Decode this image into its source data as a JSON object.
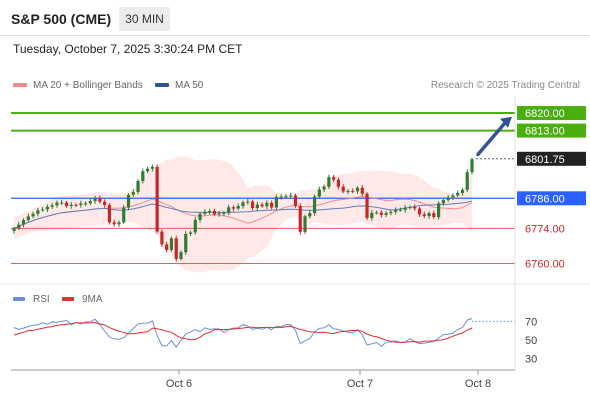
{
  "header": {
    "title": "S&P 500 (CME)",
    "interval": "30 MIN"
  },
  "timestamp": "Tuesday, October 7, 2025 3:30:24 PM CET",
  "legend": [
    {
      "label": "MA 20 + Bollinger Bands",
      "color": "#f28b8b"
    },
    {
      "label": "MA 50",
      "color": "#2f5597"
    }
  ],
  "credit": "Research © 2025 Trading Central",
  "colors": {
    "up": "#2e7d32",
    "down": "#c62828",
    "resistance": "#4caf10",
    "pivot": "#2962ff",
    "support": "#e06060",
    "band": "#fde0e0",
    "ma20": "#f28b8b",
    "ma50": "#5b7fc0",
    "rsi": "#6a8fd8",
    "rsi_ma": "#e03030",
    "arrow": "#2f5597"
  },
  "chart_data": [
    {
      "type": "candlestick",
      "ylim": [
        6755,
        6826
      ],
      "x_labels": [
        "Oct 6",
        "Oct 7",
        "Oct 8"
      ],
      "close": [
        6774,
        6775.5,
        6777.3,
        6778.8,
        6779.8,
        6781.2,
        6781.6,
        6782.6,
        6783.2,
        6784.3,
        6784.3,
        6782.9,
        6783.4,
        6783.3,
        6783.9,
        6784,
        6784.9,
        6786.1,
        6784.6,
        6783.3,
        6776.4,
        6775.6,
        6776.4,
        6782.3,
        6787.4,
        6788.5,
        6792.9,
        6796.8,
        6797.8,
        6798.5,
        6772.7,
        6767.6,
        6765.4,
        6770,
        6761.8,
        6764.5,
        6771.8,
        6772.4,
        6777.4,
        6779.8,
        6780.6,
        6780.9,
        6779.6,
        6780,
        6780.1,
        6782.4,
        6781.9,
        6782.9,
        6784.4,
        6784.7,
        6782.1,
        6783.5,
        6782.8,
        6784.2,
        6782.3,
        6786.5,
        6786.6,
        6786.8,
        6787.1,
        6782.9,
        6772.6,
        6778.8,
        6780.1,
        6786.7,
        6789.5,
        6790.6,
        6794.4,
        6793.4,
        6790.6,
        6788.7,
        6788.9,
        6788.8,
        6790.2,
        6787.8,
        6778.1,
        6780.2,
        6780.3,
        6779.4,
        6780.1,
        6780.6,
        6781.4,
        6781.4,
        6782.3,
        6782.5,
        6781.9,
        6779.6,
        6778.9,
        6780.1,
        6778.5,
        6784,
        6785.3,
        6786.4,
        6787.1,
        6788.1,
        6789.4,
        6796.4,
        6801.6
      ],
      "annotations": {
        "resistance": [
          6820,
          6813
        ],
        "last": 6801.75,
        "pivot": 6786,
        "support": [
          6774,
          6760
        ]
      },
      "price_labels": [
        "6820.00",
        "6813.00",
        "6801.75",
        "6786.00",
        "6774.00",
        "6760.00"
      ]
    },
    {
      "type": "line",
      "series": [
        {
          "name": "RSI"
        },
        {
          "name": "9MA"
        }
      ],
      "rsi": [
        63.4,
        61.2,
        62.8,
        64.5,
        65.8,
        66.3,
        68.4,
        66.6,
        69.6,
        68.9,
        69.9,
        71,
        66.4,
        68.8,
        67.1,
        69.4,
        69.6,
        72.2,
        66.1,
        59.7,
        53.3,
        51.2,
        50.8,
        52.5,
        57.3,
        62.4,
        67.1,
        68,
        68.1,
        70.5,
        55,
        44,
        43.7,
        49.6,
        42.4,
        49.7,
        56.5,
        58.5,
        61.3,
        58.9,
        63.1,
        61.4,
        61.9,
        61.9,
        58.1,
        61.4,
        62.7,
        63.1,
        66.5,
        64.9,
        61.5,
        62.5,
        61.4,
        63.5,
        61,
        64.9,
        64.2,
        66.5,
        66.3,
        60.3,
        46.2,
        49.1,
        51.4,
        58.8,
        62.5,
        63,
        66.4,
        61.8,
        61.6,
        59.6,
        58.5,
        57.4,
        61.2,
        55.5,
        44.8,
        45.8,
        47.3,
        43.3,
        47.5,
        48,
        49.1,
        47.2,
        47.6,
        51.5,
        48.1,
        46.3,
        46.7,
        47.6,
        48.2,
        52.1,
        55.8,
        56.2,
        57.4,
        61.2,
        63.4,
        71.3,
        73
      ],
      "rsi_ma": [
        55.2,
        56.9,
        58.3,
        60.2,
        60.3,
        61.6,
        62.5,
        63.6,
        64.4,
        65.6,
        66.4,
        66.8,
        67.5,
        68.4,
        68.2,
        68.2,
        68.3,
        68.7,
        67.2,
        66.1,
        63.3,
        61.2,
        59.3,
        58.1,
        56.7,
        56.8,
        57.4,
        58.2,
        59,
        62.7,
        62.1,
        60.8,
        59.3,
        58.2,
        54.9,
        52.4,
        51.3,
        50.2,
        50.6,
        53,
        56.6,
        58.1,
        61,
        61,
        61.2,
        61.2,
        61.8,
        62.3,
        62.8,
        63.6,
        63.6,
        63.1,
        63.4,
        63.5,
        63.5,
        63.3,
        63.4,
        64.3,
        64.9,
        63.1,
        61.2,
        60.2,
        58.8,
        58.4,
        58.1,
        58.2,
        57.4,
        56.9,
        58.6,
        59.1,
        59.8,
        60.3,
        60.2,
        59.2,
        56.4,
        54.4,
        53.3,
        51.7,
        49.8,
        48.6,
        47.6,
        47.6,
        47.5,
        48.1,
        48.4,
        47.6,
        48.6,
        48.9,
        49,
        49.8,
        50.3,
        52,
        54,
        56,
        57.5,
        60.6,
        62.9
      ],
      "ylim": [
        20,
        80
      ],
      "ticks": [
        70,
        50,
        30
      ]
    }
  ]
}
